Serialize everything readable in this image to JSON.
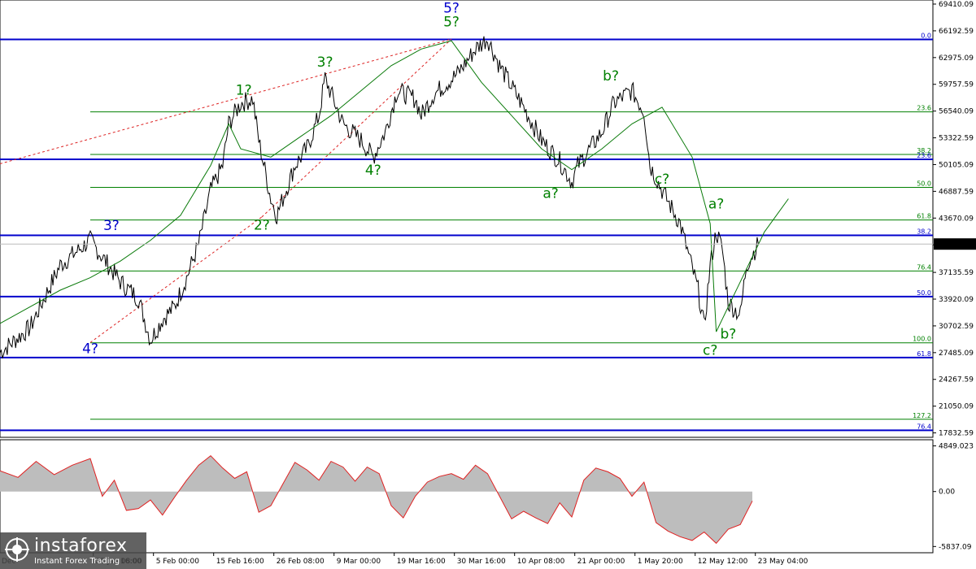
{
  "chart_data": [
    {
      "type": "line",
      "title": "",
      "y_ticks": [
        69410.09,
        66192.59,
        62975.09,
        59757.59,
        56540.09,
        53322.59,
        50105.09,
        46887.59,
        43670.09,
        40452.59,
        37135.59,
        33920.09,
        30702.59,
        27485.09,
        24267.59,
        21050.09,
        17832.59
      ],
      "y_tick_labels": [
        "69410.09",
        "66192.59",
        "62975.09",
        "59757.59",
        "56540.09",
        "53322.59",
        "50105.09",
        "46887.59",
        "43670.09",
        "",
        "37135.59",
        "33920.09",
        "30702.59",
        "27485.09",
        "24267.59",
        "21050.09",
        "17832.59"
      ],
      "ylim": [
        17300,
        69900
      ],
      "x_labels": [
        "25 Jan 08:00",
        "5 Feb 00:00",
        "15 Feb 16:00",
        "26 Feb 08:00",
        "9 Mar 00:00",
        "19 Mar 16:00",
        "30 Mar 16:00",
        "10 Apr 08:00",
        "21 Apr 00:00",
        "1 May 20:00",
        "12 May 12:00",
        "23 May 04:00"
      ],
      "x_label_positions": [
        10.5,
        20.5,
        30.5,
        40.5,
        50.5,
        60.5,
        70.5,
        80.5,
        90.5,
        100.5,
        110.5,
        120.5
      ],
      "xlim": [
        -5,
        150
      ],
      "current_price": "40548.97",
      "current_value": 40548.97,
      "x_partial": [
        "Dec",
        "16:00"
      ],
      "price_series": {
        "x": [
          -5,
          0,
          5,
          10,
          15,
          18,
          20,
          22,
          24,
          26,
          28,
          30,
          32,
          33,
          35,
          37,
          38,
          40,
          41,
          44,
          46,
          48,
          49,
          52,
          55,
          57,
          59,
          61,
          64,
          65,
          67,
          71,
          74,
          76,
          78,
          82,
          85,
          88,
          90,
          91,
          95,
          97,
          99,
          100,
          102,
          103,
          105,
          108,
          111,
          112,
          113,
          114,
          115,
          116,
          118,
          119,
          121
        ],
        "y": [
          27500,
          30500,
          38000,
          41000,
          36000,
          34000,
          29000,
          31500,
          33000,
          36500,
          40500,
          47000,
          50000,
          55000,
          57500,
          58000,
          53000,
          46000,
          44000,
          50000,
          52000,
          56000,
          60500,
          55000,
          53000,
          51000,
          54000,
          59000,
          58000,
          56000,
          58500,
          61000,
          64000,
          65300,
          62000,
          57000,
          53000,
          50500,
          48000,
          50000,
          54000,
          57500,
          58500,
          59000,
          56500,
          50000,
          47000,
          43000,
          35000,
          30500,
          38000,
          42000,
          40000,
          33500,
          32000,
          38000,
          40548.97
        ]
      },
      "wave_path": {
        "x": [
          -5,
          5,
          10,
          15,
          20,
          25,
          30,
          33,
          35,
          40,
          45,
          50,
          55,
          60,
          65,
          70,
          75,
          80,
          85,
          90,
          95,
          100,
          105,
          110,
          113,
          114,
          118,
          122,
          126
        ],
        "y": [
          31000,
          35000,
          36500,
          38500,
          41000,
          44000,
          50000,
          55000,
          52000,
          51000,
          53500,
          56000,
          59000,
          62000,
          64000,
          65000,
          60000,
          56000,
          52000,
          49500,
          52000,
          55000,
          57000,
          51000,
          43000,
          30000,
          36000,
          42000,
          46000
        ]
      },
      "horizontal_lines": [
        {
          "y": 65160,
          "color": "#0000cc",
          "label": "0.0"
        },
        {
          "y": 56450,
          "color": "#008000",
          "label": "23.6"
        },
        {
          "y": 51320,
          "color": "#008000",
          "label": "38.2"
        },
        {
          "y": 50740,
          "color": "#0000cc",
          "label": "23.6"
        },
        {
          "y": 47370,
          "color": "#008000",
          "label": "50.0"
        },
        {
          "y": 43440,
          "color": "#008000",
          "label": "61.8"
        },
        {
          "y": 41590,
          "color": "#0000cc",
          "label": "38.2"
        },
        {
          "y": 37310,
          "color": "#008000",
          "label": "76.4"
        },
        {
          "y": 34230,
          "color": "#0000cc",
          "label": "50.0"
        },
        {
          "y": 28670,
          "color": "#008000",
          "label": "100.0"
        },
        {
          "y": 26890,
          "color": "#0000cc",
          "label": "61.8"
        },
        {
          "y": 19470,
          "color": "#008000",
          "label": "127.2"
        },
        {
          "y": 18140,
          "color": "#0000cc",
          "label": "76.4"
        }
      ],
      "wave_labels": [
        {
          "text": "3?",
          "x": 13.5,
          "y": 42250,
          "color": "#0000cc"
        },
        {
          "text": "4?",
          "x": 10,
          "y": 27400,
          "color": "#0000cc"
        },
        {
          "text": "1?",
          "x": 35.5,
          "y": 58500,
          "color": "#008000"
        },
        {
          "text": "2?",
          "x": 38.5,
          "y": 42300,
          "color": "#008000"
        },
        {
          "text": "3?",
          "x": 49,
          "y": 61900,
          "color": "#008000"
        },
        {
          "text": "4?",
          "x": 57,
          "y": 48900,
          "color": "#008000"
        },
        {
          "text": "5?",
          "x": 70,
          "y": 66700,
          "color": "#008000"
        },
        {
          "text": "5?",
          "x": 70,
          "y": 68400,
          "color": "#0000cc"
        },
        {
          "text": "a?",
          "x": 86.5,
          "y": 46100,
          "color": "#008000"
        },
        {
          "text": "b?",
          "x": 96.5,
          "y": 60200,
          "color": "#008000"
        },
        {
          "text": "c?",
          "x": 105,
          "y": 47800,
          "color": "#008000"
        },
        {
          "text": "a?",
          "x": 114,
          "y": 44800,
          "color": "#008000"
        },
        {
          "text": "b?",
          "x": 116,
          "y": 29200,
          "color": "#008000"
        },
        {
          "text": "c?",
          "x": 113,
          "y": 27200,
          "color": "#008000"
        }
      ]
    },
    {
      "type": "area",
      "title": "",
      "y_ticks": [
        4849.023,
        0.0,
        -5837.09
      ],
      "y_tick_labels": [
        "4849.023",
        "0.00",
        "-5837.09"
      ],
      "ylim": [
        -6500,
        5500
      ],
      "xlim": [
        -5,
        150
      ],
      "values_x": [
        -5,
        -2,
        1,
        4,
        7,
        10,
        12,
        14,
        16,
        18,
        20,
        22,
        24,
        26,
        28,
        30,
        32,
        34,
        36,
        38,
        40,
        42,
        44,
        46,
        48,
        50,
        52,
        54,
        56,
        58,
        60,
        62,
        64,
        66,
        68,
        70,
        72,
        74,
        76,
        78,
        80,
        82,
        84,
        86,
        88,
        90,
        92,
        94,
        96,
        98,
        100,
        102,
        104,
        106,
        108,
        110,
        112,
        114,
        116,
        118,
        120
      ],
      "values_y": [
        2200,
        1500,
        3200,
        1800,
        2800,
        3500,
        -500,
        1200,
        -2000,
        -1800,
        -900,
        -2500,
        -600,
        1200,
        2800,
        3800,
        2500,
        1400,
        2100,
        -2200,
        -1500,
        800,
        3100,
        2300,
        1200,
        3200,
        2600,
        1100,
        2600,
        1900,
        -1500,
        -2800,
        -500,
        1000,
        1600,
        1900,
        1300,
        2800,
        1900,
        -500,
        -2900,
        -2100,
        -2800,
        -3400,
        -1200,
        -2700,
        1200,
        2500,
        2100,
        1400,
        -500,
        1000,
        -3300,
        -4200,
        -4800,
        -5200,
        -4300,
        -5500,
        -4000,
        -3500,
        -1000
      ]
    }
  ],
  "logo": {
    "name": "instaforex",
    "tagline": "Instant Forex Trading"
  }
}
